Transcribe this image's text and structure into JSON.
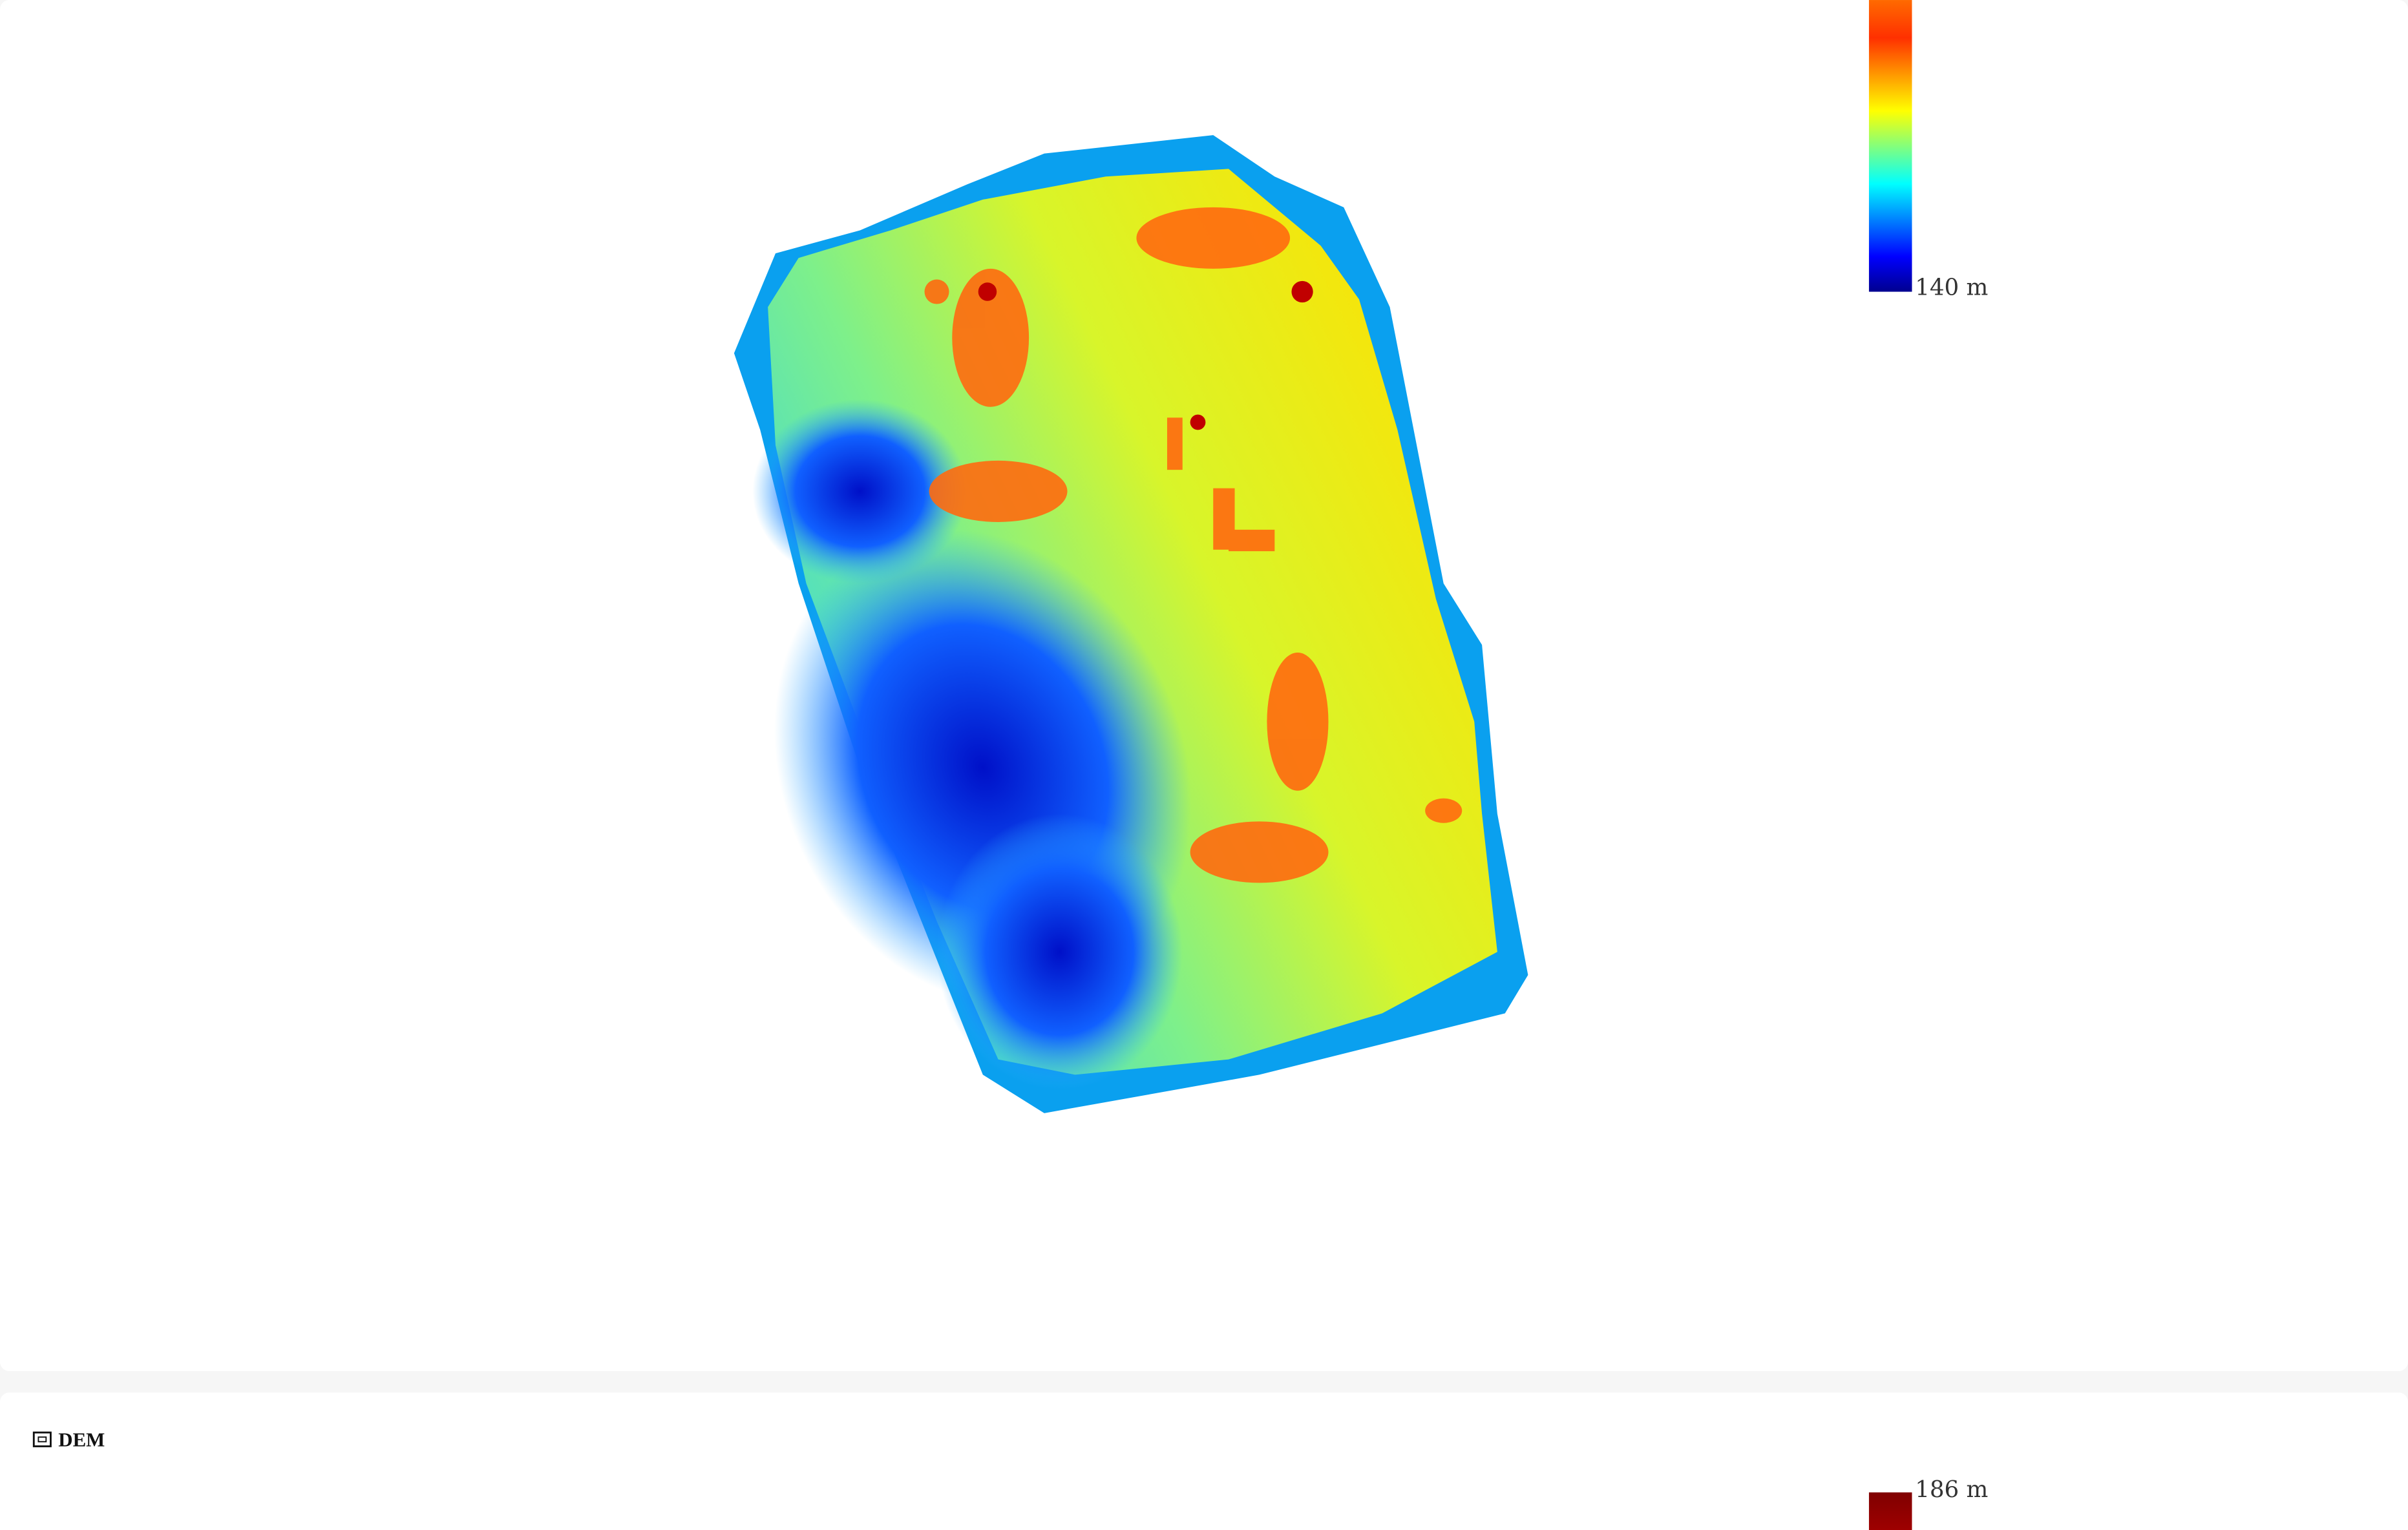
{
  "panels": [
    {
      "legend": {
        "min_label": "140 m"
      }
    },
    {
      "title": "DEM",
      "legend": {
        "max_label": "186 m"
      }
    }
  ]
}
